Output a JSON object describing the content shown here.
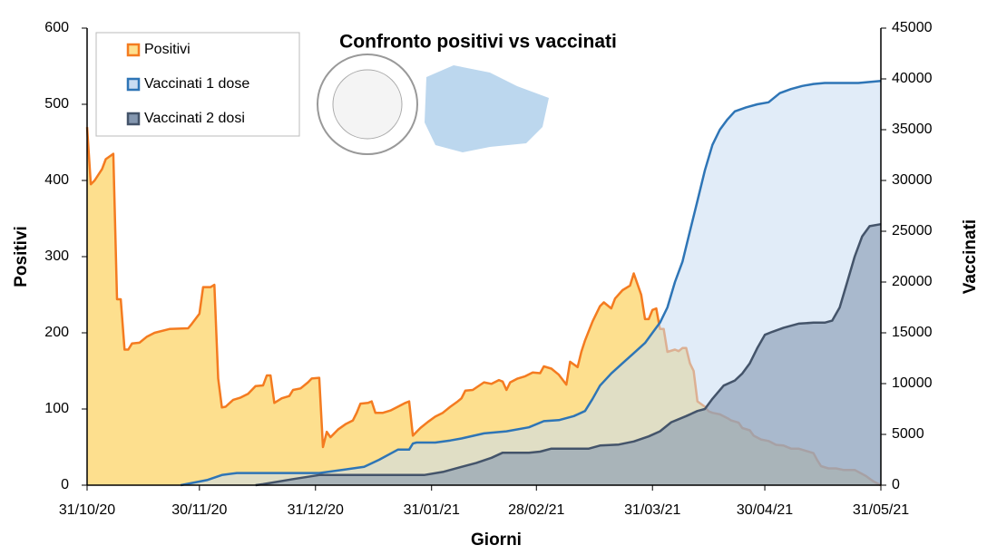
{
  "chart_data": {
    "type": "area",
    "title": "Confronto positivi vs vaccinati",
    "xlabel": "Giorni",
    "ylabel": "Positivi",
    "y2label": "Vaccinati",
    "xlim": [
      "31/10/20",
      "31/05/21"
    ],
    "xticks": [
      "31/10/20",
      "30/11/20",
      "31/12/20",
      "31/01/21",
      "28/02/21",
      "31/03/21",
      "30/04/21",
      "31/05/21"
    ],
    "ylim": [
      0,
      600
    ],
    "yticks": [
      0,
      100,
      200,
      300,
      400,
      500,
      600
    ],
    "y2lim": [
      0,
      45000
    ],
    "y2ticks": [
      0,
      5000,
      10000,
      15000,
      20000,
      25000,
      30000,
      35000,
      40000,
      45000
    ],
    "legend": "top-left",
    "series": [
      {
        "name": "Positivi",
        "color": "#f47b20",
        "fill": "#fddf8e",
        "axis": "y",
        "x": [
          "31/10/20",
          "01/11/20",
          "02/11/20",
          "04/11/20",
          "05/11/20",
          "07/11/20",
          "08/11/20",
          "09/11/20",
          "10/11/20",
          "11/11/20",
          "12/11/20",
          "14/11/20",
          "16/11/20",
          "18/11/20",
          "22/11/20",
          "27/11/20",
          "28/11/20",
          "30/11/20",
          "01/12/20",
          "03/12/20",
          "04/12/20",
          "05/12/20",
          "06/12/20",
          "07/12/20",
          "09/12/20",
          "11/12/20",
          "13/12/20",
          "15/12/20",
          "17/12/20",
          "18/12/20",
          "19/12/20",
          "20/12/20",
          "22/12/20",
          "24/12/20",
          "25/12/20",
          "27/12/20",
          "29/12/20",
          "30/12/20",
          "01/01/21",
          "02/01/21",
          "03/01/21",
          "04/01/21",
          "06/01/21",
          "08/01/21",
          "10/01/21",
          "11/01/21",
          "12/01/21",
          "14/01/21",
          "15/01/21",
          "16/01/21",
          "18/01/21",
          "20/01/21",
          "22/01/21",
          "24/01/21",
          "25/01/21",
          "26/01/21",
          "28/01/21",
          "30/01/21",
          "01/02/21",
          "03/02/21",
          "05/02/21",
          "07/02/21",
          "08/02/21",
          "09/02/21",
          "11/02/21",
          "14/02/21",
          "16/02/21",
          "18/02/21",
          "19/02/21",
          "20/02/21",
          "21/02/21",
          "23/02/21",
          "25/02/21",
          "27/02/21",
          "01/03/21",
          "02/03/21",
          "04/03/21",
          "06/03/21",
          "08/03/21",
          "09/03/21",
          "11/03/21",
          "12/03/21",
          "13/03/21",
          "15/03/21",
          "17/03/21",
          "18/03/21",
          "20/03/21",
          "21/03/21",
          "23/03/21",
          "25/03/21",
          "26/03/21",
          "28/03/21",
          "29/03/21",
          "30/03/21",
          "31/03/21",
          "01/04/21",
          "02/04/21",
          "03/04/21",
          "04/04/21",
          "06/04/21",
          "07/04/21",
          "08/04/21",
          "09/04/21",
          "10/04/21",
          "11/04/21",
          "12/04/21",
          "14/04/21",
          "15/04/21",
          "16/04/21",
          "18/04/21",
          "20/04/21",
          "21/04/21",
          "23/04/21",
          "24/04/21",
          "26/04/21",
          "27/04/21",
          "29/04/21",
          "01/05/21",
          "03/05/21",
          "05/05/21",
          "07/05/21",
          "09/05/21",
          "11/05/21",
          "13/05/21",
          "14/05/21",
          "15/05/21",
          "17/05/21",
          "19/05/21",
          "21/05/21",
          "24/05/21",
          "27/05/21",
          "29/05/21",
          "31/05/21"
        ],
        "values": [
          470,
          395,
          400,
          415,
          428,
          435,
          244,
          244,
          178,
          178,
          186,
          187,
          195,
          200,
          205,
          206,
          212,
          225,
          260,
          260,
          263,
          140,
          102,
          103,
          112,
          115,
          120,
          130,
          131,
          144,
          144,
          108,
          114,
          117,
          125,
          127,
          135,
          140,
          141,
          50,
          70,
          63,
          73,
          80,
          85,
          95,
          107,
          108,
          110,
          95,
          95,
          98,
          103,
          108,
          110,
          65,
          75,
          83,
          90,
          95,
          103,
          110,
          114,
          124,
          125,
          135,
          133,
          138,
          136,
          125,
          135,
          140,
          143,
          148,
          147,
          156,
          153,
          145,
          132,
          162,
          155,
          175,
          190,
          215,
          235,
          240,
          232,
          245,
          256,
          262,
          278,
          250,
          218,
          218,
          230,
          232,
          205,
          205,
          175,
          178,
          176,
          180,
          180,
          160,
          150,
          110,
          103,
          97,
          95,
          93,
          88,
          85,
          82,
          75,
          72,
          65,
          60,
          58,
          53,
          52,
          48,
          48,
          45,
          42,
          33,
          25,
          22,
          22,
          20,
          20,
          12,
          5,
          0
        ]
      },
      {
        "name": "Vaccinati 1 dose",
        "color": "#2e75b6",
        "fill": "#c9dcf2",
        "axis": "y2",
        "x": [
          "25/11/20",
          "02/12/20",
          "06/12/20",
          "10/12/20",
          "01/01/21",
          "13/01/21",
          "17/01/21",
          "22/01/21",
          "25/01/21",
          "26/01/21",
          "27/01/21",
          "01/02/21",
          "05/02/21",
          "08/02/21",
          "14/02/21",
          "20/02/21",
          "26/02/21",
          "02/03/21",
          "06/03/21",
          "10/03/21",
          "13/03/21",
          "15/03/21",
          "17/03/21",
          "20/03/21",
          "23/03/21",
          "26/03/21",
          "29/03/21",
          "31/03/21",
          "02/04/21",
          "04/04/21",
          "06/04/21",
          "08/04/21",
          "10/04/21",
          "12/04/21",
          "14/04/21",
          "16/04/21",
          "18/04/21",
          "20/04/21",
          "22/04/21",
          "25/04/21",
          "28/04/21",
          "01/05/21",
          "04/05/21",
          "07/05/21",
          "10/05/21",
          "13/05/21",
          "16/05/21",
          "19/05/21",
          "22/05/21",
          "25/05/21",
          "28/05/21",
          "31/05/21"
        ],
        "values": [
          0,
          500,
          1000,
          1200,
          1200,
          1800,
          2500,
          3500,
          3500,
          4100,
          4200,
          4200,
          4400,
          4600,
          5100,
          5300,
          5700,
          6300,
          6400,
          6800,
          7300,
          8500,
          9800,
          11000,
          12000,
          13000,
          14000,
          15000,
          16000,
          17500,
          20000,
          22000,
          25000,
          28000,
          31000,
          33500,
          35000,
          36000,
          36800,
          37200,
          37500,
          37700,
          38600,
          39000,
          39300,
          39500,
          39600,
          39600,
          39600,
          39600,
          39700,
          39800
        ]
      },
      {
        "name": "Vaccinati 2 dosi",
        "color": "#44546a",
        "fill": "#8497b0",
        "axis": "y2",
        "x": [
          "15/12/20",
          "17/12/20",
          "25/12/20",
          "01/01/21",
          "09/01/21",
          "29/01/21",
          "03/02/21",
          "08/02/21",
          "12/02/21",
          "16/02/21",
          "19/02/21",
          "26/02/21",
          "01/03/21",
          "04/03/21",
          "08/03/21",
          "14/03/21",
          "17/03/21",
          "22/03/21",
          "26/03/21",
          "30/03/21",
          "02/04/21",
          "05/04/21",
          "09/04/21",
          "12/04/21",
          "14/04/21",
          "16/04/21",
          "19/04/21",
          "22/04/21",
          "24/04/21",
          "26/04/21",
          "28/04/21",
          "30/04/21",
          "02/05/21",
          "05/05/21",
          "09/05/21",
          "13/05/21",
          "16/05/21",
          "18/05/21",
          "20/05/21",
          "22/05/21",
          "24/05/21",
          "26/05/21",
          "28/05/21",
          "31/05/21"
        ],
        "values": [
          0,
          100,
          600,
          1000,
          1000,
          1000,
          1300,
          1800,
          2200,
          2700,
          3200,
          3200,
          3300,
          3600,
          3600,
          3600,
          3900,
          4000,
          4300,
          4800,
          5300,
          6200,
          6800,
          7300,
          7500,
          8500,
          9800,
          10300,
          11000,
          12000,
          13500,
          14800,
          15100,
          15500,
          15900,
          16000,
          16000,
          16200,
          17500,
          20000,
          22500,
          24500,
          25500,
          25700
        ]
      }
    ]
  }
}
